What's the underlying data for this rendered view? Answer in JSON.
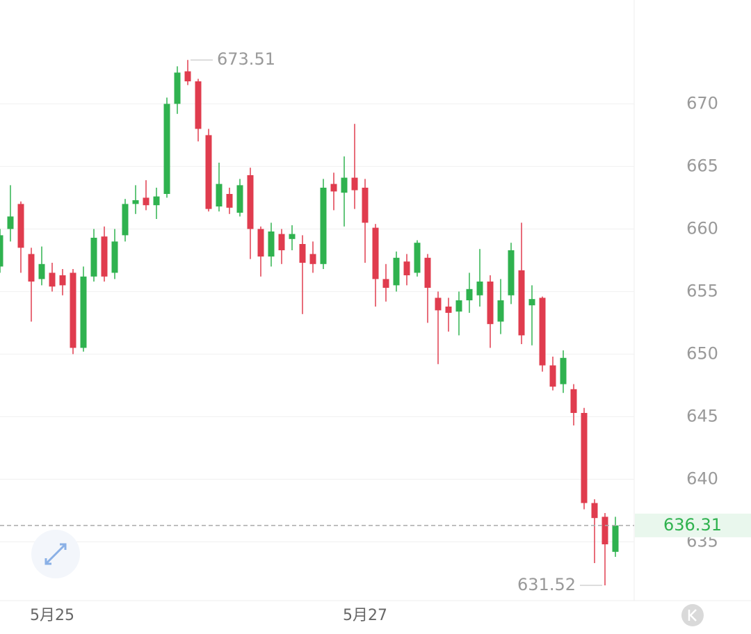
{
  "chart_data": {
    "type": "candlestick",
    "categories": [
      null,
      null,
      null,
      null,
      null,
      "5月25",
      null,
      null,
      null,
      null,
      null,
      null,
      null,
      null,
      null,
      null,
      null,
      null,
      null,
      null,
      null,
      null,
      null,
      null,
      null,
      null,
      null,
      null,
      null,
      null,
      null,
      null,
      null,
      null,
      null,
      "5月27",
      null,
      null,
      null,
      null,
      null,
      null,
      null,
      null,
      null,
      null,
      null,
      null,
      null,
      null,
      null,
      null,
      null,
      null,
      null,
      null,
      null,
      null,
      null,
      null
    ],
    "open": [
      657,
      660,
      662,
      658,
      656,
      656.5,
      656.3,
      656.5,
      650.5,
      656.2,
      659.4,
      656.5,
      659.5,
      662,
      662.5,
      661.9,
      662.8,
      670,
      672.6,
      671.8,
      667.5,
      661.8,
      662.8,
      661.3,
      664.3,
      660,
      657.8,
      659.6,
      659.2,
      658.8,
      658,
      657.2,
      663.6,
      662.9,
      664.1,
      663.3,
      660.1,
      656,
      655.5,
      657.4,
      656.5,
      657.7,
      654.5,
      653.8,
      653.4,
      654.3,
      654.7,
      655.8,
      652.6,
      654.7,
      656.7,
      653.9,
      654.5,
      649.1,
      647.6,
      647.2,
      645.3,
      638.1,
      637,
      634.2
    ],
    "high": [
      660,
      663.5,
      662.2,
      658.5,
      658.6,
      657.3,
      656.8,
      656.8,
      657,
      660,
      660.2,
      660,
      662.4,
      663.5,
      663.9,
      663.3,
      670.5,
      673,
      673.51,
      672,
      668,
      665.3,
      663.3,
      664,
      664.9,
      660.2,
      660.5,
      660,
      660.3,
      659.5,
      659,
      664,
      664.5,
      665.8,
      668.4,
      664,
      660.4,
      657.2,
      658.2,
      658,
      659.1,
      658,
      655,
      654.5,
      655,
      656.5,
      658.4,
      656.3,
      656,
      658.9,
      660.5,
      655.5,
      654.6,
      649.8,
      650.3,
      647.6,
      645.7,
      638.4,
      637.3,
      637
    ],
    "low": [
      656.5,
      659,
      656.5,
      652.6,
      655.5,
      655,
      654.7,
      650,
      650.2,
      655.8,
      655.8,
      656,
      659,
      661.2,
      661.5,
      660.8,
      662.5,
      669.2,
      671.5,
      667,
      661.4,
      661.4,
      661.2,
      661,
      657.6,
      656.2,
      657,
      657.2,
      658.3,
      653.2,
      656.5,
      656.8,
      661.5,
      660.2,
      661.6,
      657.3,
      653.8,
      654.2,
      655,
      655.5,
      656.2,
      652.5,
      649.2,
      651.8,
      651.5,
      653.3,
      653.8,
      650.5,
      651.6,
      654,
      650.8,
      650.7,
      648.6,
      647.1,
      646.9,
      644.3,
      637.6,
      633.3,
      631.52,
      633.8
    ],
    "close": [
      659.5,
      661,
      658.5,
      655.8,
      657.2,
      655.4,
      655.5,
      650.5,
      656.2,
      659.3,
      656.2,
      659,
      662,
      662.3,
      661.9,
      662.6,
      670,
      672.5,
      671.8,
      668,
      661.6,
      663.6,
      661.7,
      663.5,
      660,
      657.8,
      659.8,
      658.3,
      659.6,
      657.3,
      657.2,
      663.3,
      663,
      664.1,
      663.1,
      660.5,
      656,
      655.3,
      657.7,
      656.3,
      658.9,
      655.3,
      653.5,
      653.3,
      654.3,
      655.2,
      655.8,
      652.4,
      654.3,
      658.3,
      651.5,
      654.4,
      649.1,
      647.4,
      649.7,
      645.3,
      638.1,
      636.9,
      634.8,
      636.31
    ],
    "up_color": "#2fb24f",
    "down_color": "#e03c4e",
    "ylim": [
      630.3,
      678.3
    ],
    "yticks": [
      635,
      640,
      645,
      650,
      655,
      660,
      665,
      670
    ],
    "grid": true
  }
}
